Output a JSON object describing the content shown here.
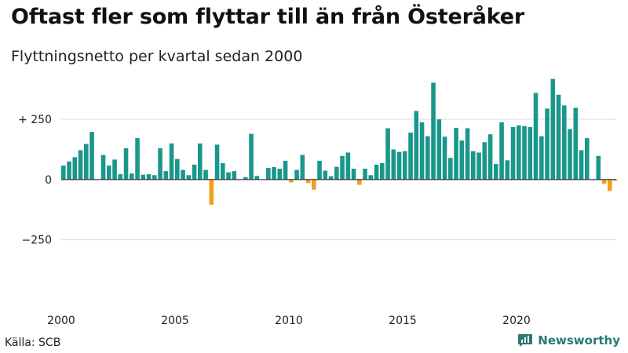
{
  "title": "Oftast fler som flyttar till än från Österåker",
  "subtitle": "Flyttningsnetto per kvartal sedan 2000",
  "source": "Källa: SCB",
  "brand": "Newsworthy",
  "colors": {
    "positive": "#1a978b",
    "negative": "#f0a020",
    "grid": "#dddddd",
    "axis": "#333333"
  },
  "chart_data": {
    "type": "bar",
    "title": "Oftast fler som flyttar till än från Österåker",
    "subtitle": "Flyttningsnetto per kvartal sedan 2000",
    "ylim": [
      -460,
      420
    ],
    "grid": true,
    "y_ticks": [
      250,
      0,
      -250
    ],
    "y_tick_labels": [
      "+ 250",
      "0",
      "−250"
    ],
    "x_ticks": [
      2000,
      2005,
      2010,
      2015,
      2020
    ],
    "x_tick_labels": [
      "2000",
      "2005",
      "2010",
      "2015",
      "2020"
    ],
    "start_year": 2000,
    "quarters_per_year": 4,
    "values": [
      58,
      75,
      93,
      122,
      148,
      198,
      0,
      102,
      58,
      83,
      22,
      130,
      25,
      172,
      20,
      22,
      18,
      130,
      35,
      150,
      85,
      40,
      18,
      62,
      150,
      40,
      -105,
      145,
      68,
      30,
      35,
      0,
      10,
      190,
      15,
      0,
      48,
      52,
      45,
      78,
      -12,
      40,
      102,
      -15,
      -42,
      78,
      37,
      14,
      53,
      98,
      112,
      45,
      -22,
      45,
      18,
      62,
      68,
      213,
      125,
      115,
      118,
      195,
      285,
      238,
      180,
      402,
      250,
      178,
      90,
      215,
      162,
      213,
      118,
      112,
      155,
      188,
      65,
      238,
      80,
      218,
      225,
      222,
      218,
      360,
      180,
      295,
      418,
      352,
      308,
      210,
      298,
      122,
      172,
      0,
      98,
      -18,
      -48,
      -5
    ]
  }
}
